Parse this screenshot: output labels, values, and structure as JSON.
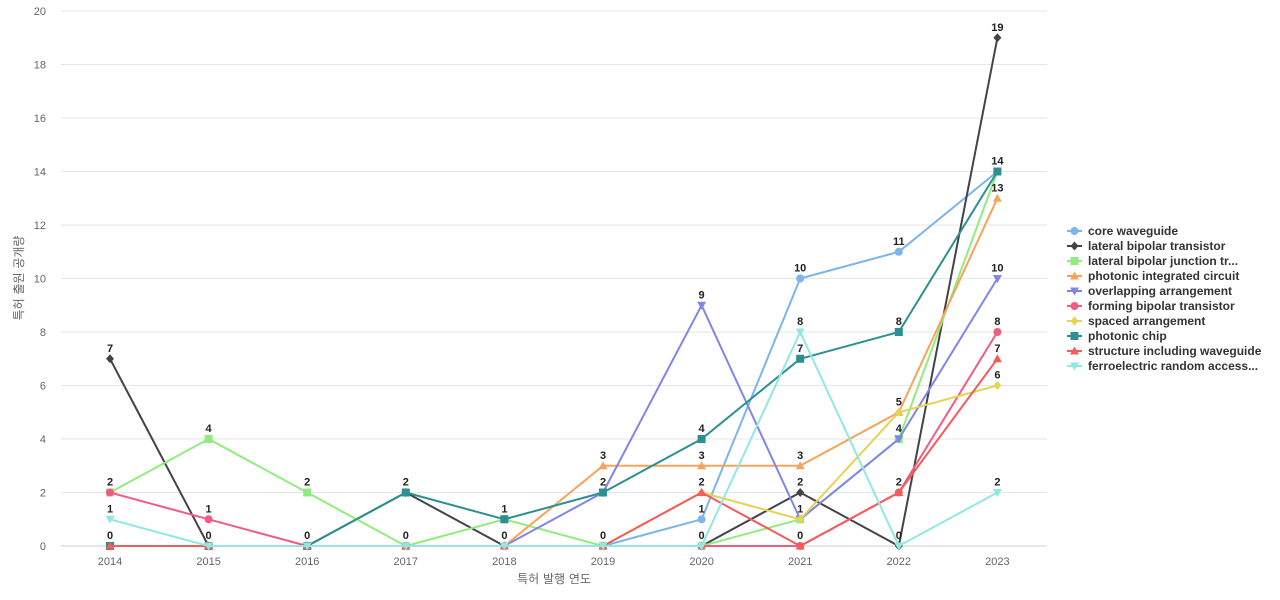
{
  "chart_data": {
    "type": "line",
    "title": "",
    "xlabel": "특허 발행 연도",
    "ylabel": "특허 출원 공개량",
    "x": [
      "2014",
      "2015",
      "2016",
      "2017",
      "2018",
      "2019",
      "2020",
      "2021",
      "2022",
      "2023"
    ],
    "ylim": [
      0,
      20
    ],
    "yticks": [
      0,
      2,
      4,
      6,
      8,
      10,
      12,
      14,
      16,
      18,
      20
    ],
    "grid": true,
    "legend_position": "right",
    "series": [
      {
        "name": "core waveguide",
        "color": "#7cb5ec",
        "marker": "circle",
        "values": [
          0,
          0,
          0,
          0,
          0,
          0,
          1,
          10,
          11,
          14
        ]
      },
      {
        "name": "lateral bipolar transistor",
        "color": "#434348",
        "marker": "diamond",
        "values": [
          7,
          0,
          0,
          2,
          0,
          0,
          0,
          2,
          0,
          19
        ]
      },
      {
        "name": "lateral bipolar junction tr...",
        "color": "#90ed7d",
        "marker": "square",
        "values": [
          2,
          4,
          2,
          0,
          1,
          0,
          0,
          1,
          4,
          14
        ]
      },
      {
        "name": "photonic integrated circuit",
        "color": "#f7a35c",
        "marker": "triangle",
        "values": [
          0,
          0,
          0,
          0,
          0,
          3,
          3,
          3,
          5,
          13
        ]
      },
      {
        "name": "overlapping arrangement",
        "color": "#8085e9",
        "marker": "triangle-down",
        "values": [
          0,
          0,
          0,
          0,
          0,
          2,
          9,
          1,
          4,
          10
        ]
      },
      {
        "name": "forming bipolar transistor",
        "color": "#f15c80",
        "marker": "circle",
        "values": [
          2,
          1,
          0,
          0,
          0,
          0,
          0,
          0,
          2,
          8
        ]
      },
      {
        "name": "spaced arrangement",
        "color": "#e4d354",
        "marker": "diamond",
        "values": [
          0,
          0,
          0,
          0,
          0,
          0,
          2,
          1,
          5,
          6
        ]
      },
      {
        "name": "photonic chip",
        "color": "#2b908f",
        "marker": "square",
        "values": [
          0,
          0,
          0,
          2,
          1,
          2,
          4,
          7,
          8,
          14
        ]
      },
      {
        "name": "structure including waveguide",
        "color": "#f45b5b",
        "marker": "triangle",
        "values": [
          0,
          0,
          0,
          0,
          0,
          0,
          2,
          0,
          2,
          7
        ]
      },
      {
        "name": "ferroelectric random access...",
        "color": "#91e8e1",
        "marker": "triangle-down",
        "values": [
          1,
          0,
          0,
          0,
          0,
          0,
          0,
          8,
          0,
          2
        ]
      }
    ],
    "data_labels": [
      {
        "x": "2014",
        "text": "7",
        "series": "lateral bipolar transistor",
        "value": 7
      },
      {
        "x": "2014",
        "text": "2",
        "series": "lateral bipolar junction tr...",
        "value": 2
      },
      {
        "x": "2014",
        "text": "1",
        "series": "ferroelectric random access...",
        "value": 1
      },
      {
        "x": "2014",
        "text": "0",
        "series": "photonic chip",
        "value": 0
      },
      {
        "x": "2015",
        "text": "4",
        "series": "lateral bipolar junction tr...",
        "value": 4
      },
      {
        "x": "2015",
        "text": "1",
        "series": "forming bipolar transistor",
        "value": 1
      },
      {
        "x": "2015",
        "text": "0",
        "series": "core waveguide",
        "value": 0
      },
      {
        "x": "2016",
        "text": "2",
        "series": "lateral bipolar junction tr...",
        "value": 2
      },
      {
        "x": "2016",
        "text": "0",
        "series": "core waveguide",
        "value": 0
      },
      {
        "x": "2017",
        "text": "2",
        "series": "photonic chip",
        "value": 2
      },
      {
        "x": "2017",
        "text": "0",
        "series": "core waveguide",
        "value": 0
      },
      {
        "x": "2018",
        "text": "1",
        "series": "photonic chip",
        "value": 1
      },
      {
        "x": "2018",
        "text": "0",
        "series": "core waveguide",
        "value": 0
      },
      {
        "x": "2019",
        "text": "3",
        "series": "photonic integrated circuit",
        "value": 3
      },
      {
        "x": "2019",
        "text": "2",
        "series": "photonic chip",
        "value": 2
      },
      {
        "x": "2019",
        "text": "0",
        "series": "core waveguide",
        "value": 0
      },
      {
        "x": "2020",
        "text": "9",
        "series": "overlapping arrangement",
        "value": 9
      },
      {
        "x": "2020",
        "text": "4",
        "series": "photonic chip",
        "value": 4
      },
      {
        "x": "2020",
        "text": "3",
        "series": "photonic integrated circuit",
        "value": 3
      },
      {
        "x": "2020",
        "text": "2",
        "series": "structure including waveguide",
        "value": 2
      },
      {
        "x": "2020",
        "text": "1",
        "series": "core waveguide",
        "value": 1
      },
      {
        "x": "2020",
        "text": "0",
        "series": "lateral bipolar transistor",
        "value": 0
      },
      {
        "x": "2021",
        "text": "10",
        "series": "core waveguide",
        "value": 10
      },
      {
        "x": "2021",
        "text": "8",
        "series": "ferroelectric random access...",
        "value": 8
      },
      {
        "x": "2021",
        "text": "7",
        "series": "photonic chip",
        "value": 7
      },
      {
        "x": "2021",
        "text": "3",
        "series": "photonic integrated circuit",
        "value": 3
      },
      {
        "x": "2021",
        "text": "2",
        "series": "lateral bipolar transistor",
        "value": 2
      },
      {
        "x": "2021",
        "text": "1",
        "series": "lateral bipolar junction tr...",
        "value": 1
      },
      {
        "x": "2021",
        "text": "0",
        "series": "structure including waveguide",
        "value": 0
      },
      {
        "x": "2022",
        "text": "11",
        "series": "core waveguide",
        "value": 11
      },
      {
        "x": "2022",
        "text": "8",
        "series": "photonic chip",
        "value": 8
      },
      {
        "x": "2022",
        "text": "5",
        "series": "photonic integrated circuit",
        "value": 5
      },
      {
        "x": "2022",
        "text": "4",
        "series": "overlapping arrangement",
        "value": 4
      },
      {
        "x": "2022",
        "text": "2",
        "series": "forming bipolar transistor",
        "value": 2
      },
      {
        "x": "2022",
        "text": "0",
        "series": "lateral bipolar transistor",
        "value": 0
      },
      {
        "x": "2023",
        "text": "19",
        "series": "lateral bipolar transistor",
        "value": 19
      },
      {
        "x": "2023",
        "text": "14",
        "series": "photonic chip",
        "value": 14
      },
      {
        "x": "2023",
        "text": "13",
        "series": "photonic integrated circuit",
        "value": 13
      },
      {
        "x": "2023",
        "text": "10",
        "series": "overlapping arrangement",
        "value": 10
      },
      {
        "x": "2023",
        "text": "8",
        "series": "forming bipolar transistor",
        "value": 8
      },
      {
        "x": "2023",
        "text": "7",
        "series": "structure including waveguide",
        "value": 7
      },
      {
        "x": "2023",
        "text": "6",
        "series": "spaced arrangement",
        "value": 6
      },
      {
        "x": "2023",
        "text": "2",
        "series": "ferroelectric random access...",
        "value": 2
      }
    ]
  }
}
